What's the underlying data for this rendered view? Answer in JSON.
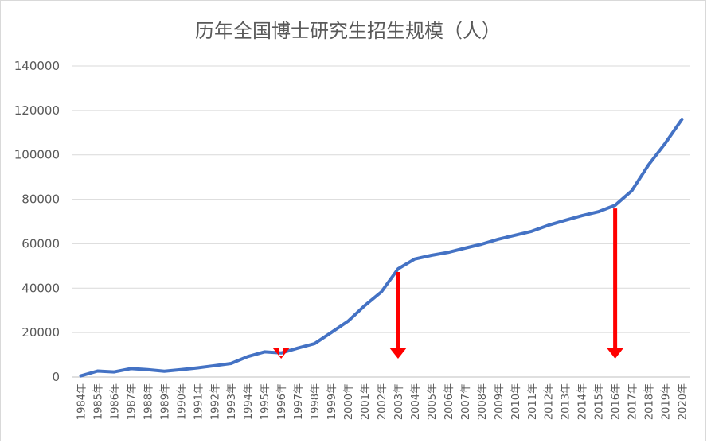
{
  "chart_data": {
    "type": "line",
    "title": "历年全国博士研究生招生规模（人）",
    "xlabel": "",
    "ylabel": "",
    "categories": [
      "1984年",
      "1985年",
      "1986年",
      "1987年",
      "1988年",
      "1989年",
      "1990年",
      "1991年",
      "1992年",
      "1993年",
      "1994年",
      "1995年",
      "1996年",
      "1997年",
      "1998年",
      "1999年",
      "2000年",
      "2001年",
      "2002年",
      "2003年",
      "2004年",
      "2005年",
      "2006年",
      "2007年",
      "2008年",
      "2009年",
      "2010年",
      "2011年",
      "2012年",
      "2013年",
      "2014年",
      "2015年",
      "2016年",
      "2017年",
      "2018年",
      "2019年",
      "2020年"
    ],
    "values": [
      500,
      2700,
      2300,
      3800,
      3300,
      2600,
      3300,
      4100,
      5100,
      6100,
      9200,
      11300,
      10800,
      13000,
      15000,
      20000,
      25100,
      32100,
      38300,
      48700,
      53100,
      54800,
      56100,
      58000,
      59800,
      62000,
      63800,
      65600,
      68300,
      70500,
      72600,
      74400,
      77300,
      83900,
      95500,
      105200,
      116000
    ],
    "ylim": [
      0,
      140000
    ],
    "yticks": [
      "0",
      "20000",
      "40000",
      "60000",
      "80000",
      "100000",
      "120000",
      "140000"
    ],
    "yticks_values": [
      0,
      20000,
      40000,
      60000,
      80000,
      100000,
      120000,
      140000
    ],
    "grid": "horizontal",
    "legend": "none",
    "line_color": "#4472C4",
    "annotation_color": "#FF0000",
    "annotations": [
      {
        "type": "arrow-down",
        "category": "1996年"
      },
      {
        "type": "arrow-down",
        "category": "2003年"
      },
      {
        "type": "arrow-down",
        "category": "2016年"
      }
    ]
  }
}
